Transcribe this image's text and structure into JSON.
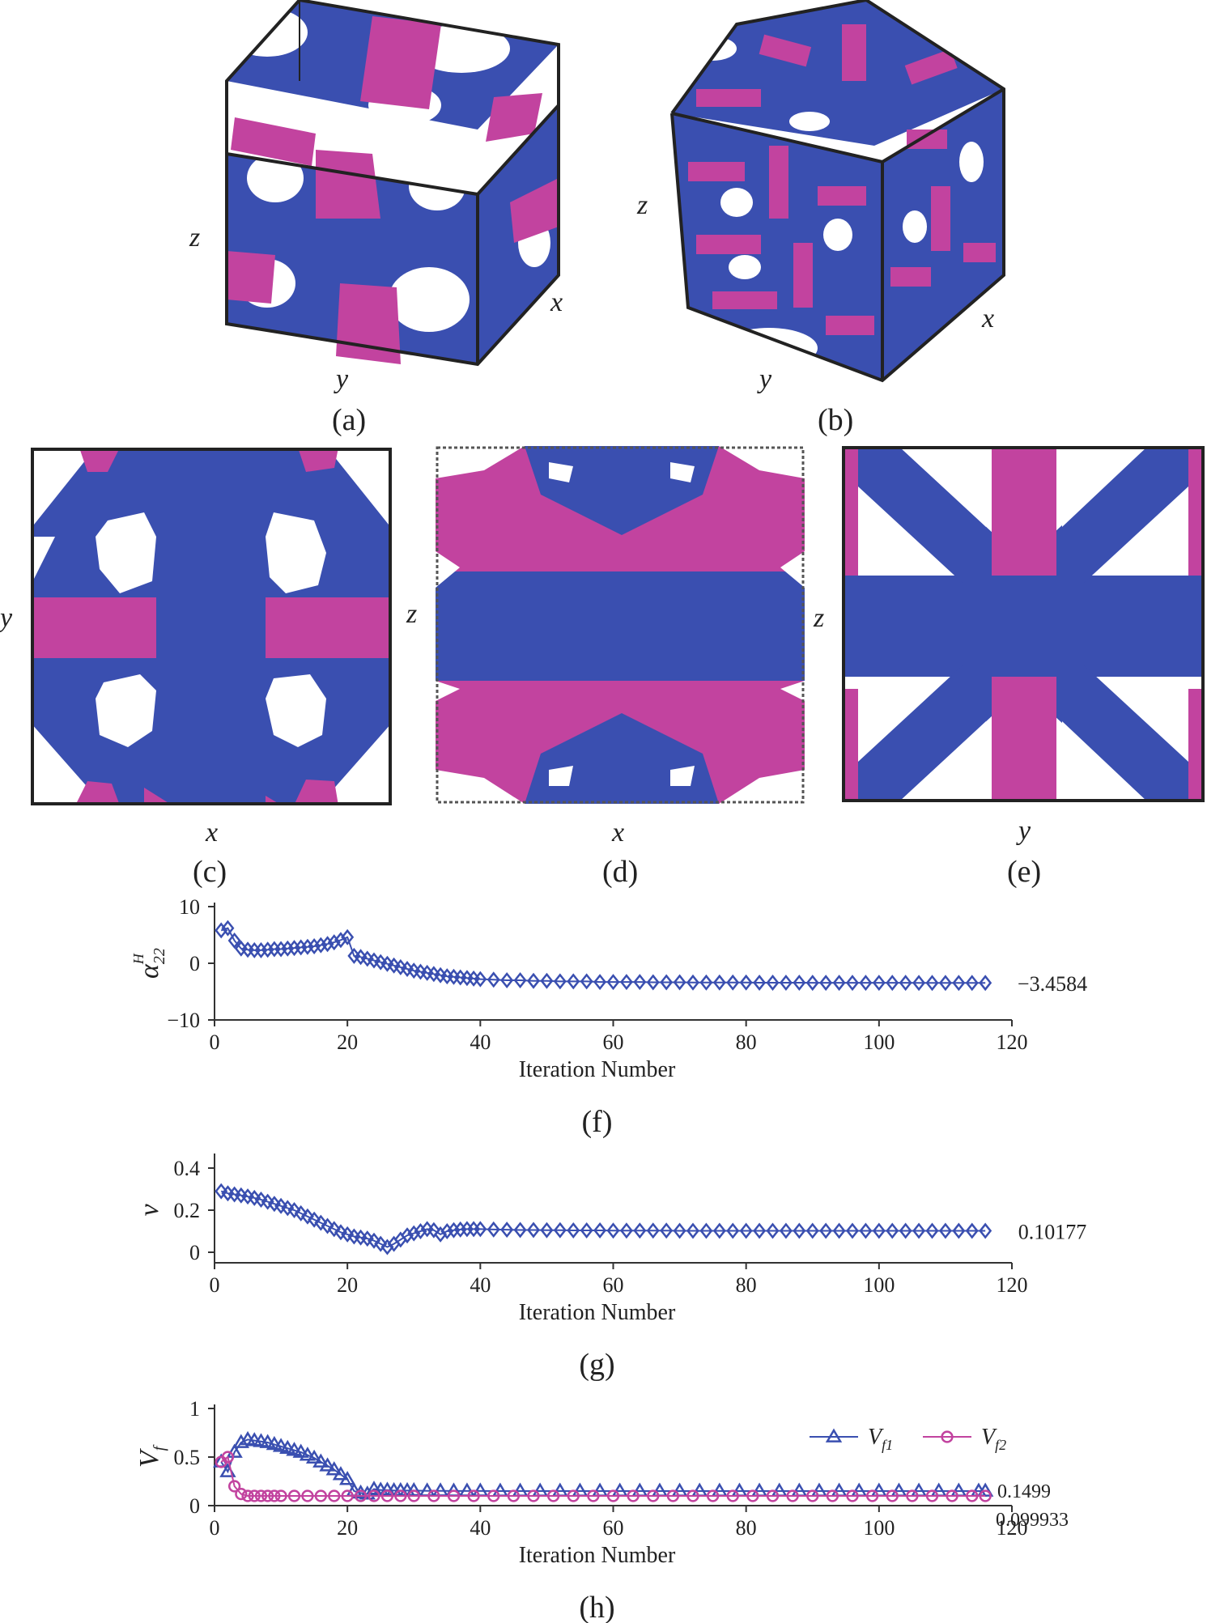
{
  "figure": {
    "panels": [
      {
        "id": "a",
        "caption": "(a)",
        "view": "3D",
        "axes": {
          "vertical": "z",
          "right": "x",
          "bottom": "y"
        }
      },
      {
        "id": "b",
        "caption": "(b)",
        "view": "3D",
        "axes": {
          "vertical": "z",
          "right": "x",
          "bottom": "y"
        }
      },
      {
        "id": "c",
        "caption": "(c)",
        "view": "2D",
        "axes": {
          "vertical": "y",
          "horizontal": "x"
        }
      },
      {
        "id": "d",
        "caption": "(d)",
        "view": "2D",
        "axes": {
          "vertical": "z",
          "horizontal": "x"
        }
      },
      {
        "id": "e",
        "caption": "(e)",
        "view": "2D",
        "axes": {
          "vertical": "z",
          "horizontal": "y"
        }
      }
    ],
    "colors": {
      "material1": "#3a4fb0",
      "material2": "#c2439f",
      "edge": "#222222",
      "void": "#ffffff"
    }
  },
  "chart_data": [
    {
      "id": "f",
      "type": "line",
      "caption": "(f)",
      "title": "",
      "xlabel": "Iteration Number",
      "ylabel": "α22H",
      "ylabel_base": "α",
      "ylabel_sub": "22",
      "ylabel_sup": "H",
      "xlim": [
        0,
        120
      ],
      "ylim": [
        -10,
        10
      ],
      "xticks": [
        0,
        20,
        40,
        60,
        80,
        100,
        120
      ],
      "yticks": [
        -10,
        0,
        10
      ],
      "marker": "diamond",
      "color": "#3a4fb0",
      "final_label": "−3.4584",
      "series": [
        {
          "name": "α22H",
          "x": [
            1,
            2,
            3,
            4,
            5,
            6,
            7,
            8,
            9,
            10,
            11,
            12,
            13,
            14,
            15,
            16,
            17,
            18,
            19,
            20,
            21,
            22,
            23,
            24,
            25,
            26,
            27,
            28,
            29,
            30,
            31,
            32,
            33,
            34,
            35,
            36,
            37,
            38,
            39,
            40,
            42,
            44,
            46,
            48,
            50,
            52,
            54,
            56,
            58,
            60,
            62,
            64,
            66,
            68,
            70,
            72,
            74,
            76,
            78,
            80,
            82,
            84,
            86,
            88,
            90,
            92,
            94,
            96,
            98,
            100,
            102,
            104,
            106,
            108,
            110,
            112,
            114,
            116
          ],
          "y": [
            5.8,
            6.2,
            4.0,
            2.6,
            2.4,
            2.3,
            2.3,
            2.4,
            2.5,
            2.5,
            2.6,
            2.7,
            2.8,
            2.9,
            3.0,
            3.2,
            3.4,
            3.7,
            4.1,
            4.6,
            1.3,
            1.1,
            0.8,
            0.5,
            0.2,
            -0.1,
            -0.4,
            -0.7,
            -1.0,
            -1.3,
            -1.5,
            -1.7,
            -1.9,
            -2.1,
            -2.3,
            -2.4,
            -2.5,
            -2.6,
            -2.7,
            -2.8,
            -2.9,
            -3.0,
            -3.0,
            -3.1,
            -3.1,
            -3.2,
            -3.2,
            -3.2,
            -3.3,
            -3.3,
            -3.3,
            -3.3,
            -3.35,
            -3.35,
            -3.35,
            -3.4,
            -3.4,
            -3.4,
            -3.4,
            -3.4,
            -3.42,
            -3.42,
            -3.43,
            -3.43,
            -3.44,
            -3.44,
            -3.44,
            -3.45,
            -3.45,
            -3.45,
            -3.45,
            -3.45,
            -3.46,
            -3.46,
            -3.46,
            -3.46,
            -3.46,
            -3.4584
          ]
        }
      ]
    },
    {
      "id": "g",
      "type": "line",
      "caption": "(g)",
      "title": "",
      "xlabel": "Iteration Number",
      "ylabel": "ν",
      "xlim": [
        0,
        120
      ],
      "ylim": [
        -0.05,
        0.45
      ],
      "xticks": [
        0,
        20,
        40,
        60,
        80,
        100,
        120
      ],
      "yticks": [
        0,
        0.2,
        0.4
      ],
      "ytick_labels": [
        "0",
        "0.2",
        "0.4"
      ],
      "marker": "diamond",
      "color": "#3a4fb0",
      "final_label": "0.10177",
      "series": [
        {
          "name": "ν",
          "x": [
            1,
            2,
            3,
            4,
            5,
            6,
            7,
            8,
            9,
            10,
            11,
            12,
            13,
            14,
            15,
            16,
            17,
            18,
            19,
            20,
            21,
            22,
            23,
            24,
            25,
            26,
            27,
            28,
            29,
            30,
            31,
            32,
            33,
            34,
            35,
            36,
            37,
            38,
            39,
            40,
            42,
            44,
            46,
            48,
            50,
            52,
            54,
            56,
            58,
            60,
            62,
            64,
            66,
            68,
            70,
            72,
            74,
            76,
            78,
            80,
            82,
            84,
            86,
            88,
            90,
            92,
            94,
            96,
            98,
            100,
            102,
            104,
            106,
            108,
            110,
            112,
            114,
            116
          ],
          "y": [
            0.29,
            0.28,
            0.275,
            0.27,
            0.265,
            0.258,
            0.25,
            0.24,
            0.23,
            0.22,
            0.21,
            0.2,
            0.185,
            0.17,
            0.155,
            0.14,
            0.125,
            0.11,
            0.095,
            0.085,
            0.075,
            0.07,
            0.065,
            0.055,
            0.04,
            0.025,
            0.04,
            0.06,
            0.08,
            0.09,
            0.1,
            0.11,
            0.105,
            0.085,
            0.1,
            0.105,
            0.108,
            0.11,
            0.11,
            0.11,
            0.108,
            0.107,
            0.106,
            0.106,
            0.105,
            0.105,
            0.104,
            0.104,
            0.104,
            0.103,
            0.103,
            0.103,
            0.103,
            0.103,
            0.102,
            0.102,
            0.102,
            0.102,
            0.102,
            0.102,
            0.102,
            0.102,
            0.102,
            0.102,
            0.102,
            0.102,
            0.102,
            0.102,
            0.102,
            0.102,
            0.102,
            0.102,
            0.102,
            0.102,
            0.102,
            0.10177,
            0.10177,
            0.10177
          ]
        }
      ]
    },
    {
      "id": "h",
      "type": "line",
      "caption": "(h)",
      "title": "",
      "xlabel": "Iteration Number",
      "ylabel": "Vf",
      "ylabel_base": "V",
      "ylabel_sub": "f",
      "xlim": [
        0,
        120
      ],
      "ylim": [
        0,
        1
      ],
      "xticks": [
        0,
        20,
        40,
        60,
        80,
        100,
        120
      ],
      "yticks": [
        0,
        0.5,
        1
      ],
      "ytick_labels": [
        "0",
        "0.5",
        "1"
      ],
      "legend": "top-right",
      "final_labels": [
        "0.1499",
        "0.099933"
      ],
      "series": [
        {
          "name": "Vf1",
          "name_base": "V",
          "name_sub": "f1",
          "marker": "triangle",
          "color": "#3a4fb0",
          "x": [
            1,
            2,
            3,
            4,
            5,
            6,
            7,
            8,
            9,
            10,
            11,
            12,
            13,
            14,
            15,
            16,
            17,
            18,
            19,
            20,
            21,
            22,
            23,
            24,
            25,
            26,
            27,
            28,
            29,
            30,
            32,
            34,
            36,
            38,
            40,
            43,
            46,
            49,
            52,
            55,
            58,
            61,
            64,
            67,
            70,
            73,
            76,
            79,
            82,
            85,
            88,
            91,
            94,
            97,
            100,
            103,
            106,
            109,
            112,
            115,
            116
          ],
          "y": [
            0.45,
            0.35,
            0.55,
            0.65,
            0.68,
            0.67,
            0.66,
            0.65,
            0.63,
            0.61,
            0.59,
            0.57,
            0.55,
            0.52,
            0.49,
            0.45,
            0.41,
            0.37,
            0.32,
            0.27,
            0.15,
            0.13,
            0.12,
            0.17,
            0.16,
            0.16,
            0.155,
            0.155,
            0.155,
            0.155,
            0.152,
            0.152,
            0.151,
            0.151,
            0.151,
            0.15,
            0.15,
            0.15,
            0.15,
            0.15,
            0.15,
            0.15,
            0.15,
            0.15,
            0.15,
            0.15,
            0.15,
            0.15,
            0.15,
            0.15,
            0.15,
            0.15,
            0.15,
            0.15,
            0.15,
            0.15,
            0.15,
            0.15,
            0.1499,
            0.1499,
            0.1499
          ]
        },
        {
          "name": "Vf2",
          "name_base": "V",
          "name_sub": "f2",
          "marker": "circle",
          "color": "#c2439f",
          "x": [
            1,
            2,
            3,
            4,
            5,
            6,
            7,
            8,
            9,
            10,
            12,
            14,
            16,
            18,
            20,
            22,
            24,
            26,
            28,
            30,
            33,
            36,
            39,
            42,
            45,
            48,
            51,
            54,
            57,
            60,
            63,
            66,
            69,
            72,
            75,
            78,
            81,
            84,
            87,
            90,
            93,
            96,
            99,
            102,
            105,
            108,
            111,
            114,
            116
          ],
          "y": [
            0.45,
            0.5,
            0.2,
            0.12,
            0.1,
            0.1,
            0.1,
            0.1,
            0.1,
            0.1,
            0.1,
            0.1,
            0.1,
            0.1,
            0.1,
            0.1,
            0.1,
            0.1,
            0.1,
            0.1,
            0.1,
            0.1,
            0.1,
            0.1,
            0.1,
            0.1,
            0.1,
            0.1,
            0.1,
            0.1,
            0.1,
            0.1,
            0.1,
            0.1,
            0.1,
            0.1,
            0.1,
            0.1,
            0.1,
            0.1,
            0.1,
            0.1,
            0.1,
            0.1,
            0.1,
            0.1,
            0.1,
            0.0999,
            0.099933
          ]
        }
      ]
    }
  ]
}
